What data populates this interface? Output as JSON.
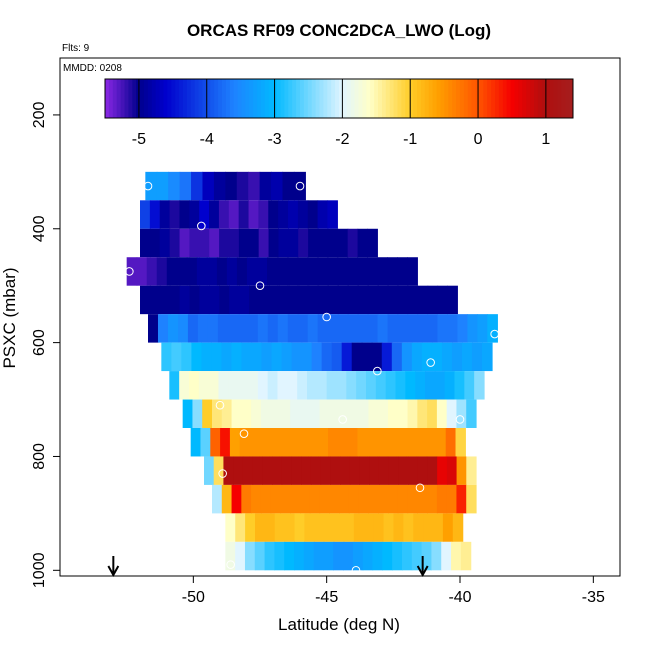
{
  "chart_data": {
    "type": "heatmap",
    "title": "ORCAS RF09 CONC2DCA_LWO (Log)",
    "note_flights": "Flts: 9",
    "note_date": "MMDD: 0208",
    "xlabel": "Latitude (deg N)",
    "ylabel": "PSXC (mbar)",
    "xlim": [
      -55,
      -34
    ],
    "ylim": [
      1010,
      100
    ],
    "y_axis": "inverted",
    "xticks": [
      -50,
      -45,
      -40,
      -35
    ],
    "yticks": [
      200,
      400,
      600,
      800,
      1000
    ],
    "colorbar": {
      "range": [
        -5.5,
        1.4
      ],
      "ticks": [
        -5,
        -4,
        -3,
        -2,
        -1,
        0,
        1
      ],
      "placement": "top-inside"
    },
    "grid": false,
    "cell_height_mbar": 50,
    "rows": [
      {
        "p": 325,
        "x0": -51.8,
        "x1": -45.8,
        "values": [
          -3.3,
          -3.3,
          -3.5,
          -3.7,
          -4.2,
          -4.7,
          -4.9,
          -5.0,
          -5.1,
          -5.2,
          -4.9,
          -4.8,
          -5.0,
          -5.0
        ]
      },
      {
        "p": 375,
        "x0": -52.0,
        "x1": -44.6,
        "values": [
          -4.1,
          -4.5,
          -4.9,
          -5.1,
          -5.0,
          -4.9,
          -4.6,
          -4.9,
          -5.2,
          -5.3,
          -5.1,
          -5.3,
          -5.2,
          -5.0,
          -4.9,
          -4.8,
          -4.9,
          -5.0,
          -4.8,
          -4.7
        ]
      },
      {
        "p": 425,
        "x0": -52.0,
        "x1": -43.1,
        "values": [
          -5.0,
          -5.0,
          -4.9,
          -5.1,
          -5.3,
          -5.2,
          -5.2,
          -5.3,
          -5.1,
          -5.1,
          -5.0,
          -5.0,
          -5.2,
          -5.0,
          -4.9,
          -4.9,
          -5.1,
          -5.0,
          -5.0,
          -5.0,
          -5.0,
          -5.1,
          -5.0,
          -5.0
        ]
      },
      {
        "p": 475,
        "x0": -52.5,
        "x1": -41.6,
        "values": [
          -5.3,
          -5.3,
          -5.2,
          -5.1,
          -5.0,
          -5.0,
          -5.0,
          -4.9,
          -4.9,
          -5.0,
          -4.9,
          -5.0,
          -4.9,
          -4.9,
          -5.0,
          -5.0,
          -5.0,
          -5.0,
          -5.0,
          -5.0,
          -5.0,
          -5.0,
          -5.0,
          -5.0,
          -5.0,
          -5.0,
          -5.0,
          -5.0,
          -5.0
        ]
      },
      {
        "p": 525,
        "x0": -52.0,
        "x1": -40.1,
        "values": [
          -5.0,
          -5.0,
          -5.0,
          -5.0,
          -4.9,
          -5.0,
          -4.9,
          -4.9,
          -5.0,
          -4.9,
          -4.9,
          -5.0,
          -5.0,
          -5.0,
          -5.0,
          -5.0,
          -5.0,
          -5.0,
          -5.0,
          -5.0,
          -5.0,
          -5.0,
          -5.0,
          -5.0,
          -5.0,
          -5.0,
          -5.0,
          -5.0,
          -5.0,
          -5.0,
          -5.0,
          -5.0
        ]
      },
      {
        "p": 575,
        "x0": -51.7,
        "x1": -38.6,
        "values": [
          -5.0,
          -3.6,
          -3.4,
          -3.5,
          -3.8,
          -3.7,
          -3.7,
          -3.8,
          -3.8,
          -3.8,
          -3.8,
          -3.7,
          -3.8,
          -3.7,
          -3.8,
          -3.8,
          -3.7,
          -3.8,
          -3.8,
          -3.8,
          -3.8,
          -3.8,
          -3.8,
          -3.7,
          -3.8,
          -3.8,
          -3.8,
          -3.8,
          -3.8,
          -3.7,
          -3.7,
          -3.6,
          -3.4,
          -3.3,
          -3.1
        ]
      },
      {
        "p": 625,
        "x0": -51.2,
        "x1": -38.8,
        "values": [
          -2.8,
          -2.7,
          -2.8,
          -3.0,
          -3.1,
          -3.1,
          -3.2,
          -3.1,
          -3.2,
          -3.2,
          -3.3,
          -3.2,
          -3.3,
          -3.4,
          -3.4,
          -3.6,
          -3.8,
          -3.9,
          -4.4,
          -5.0,
          -5.0,
          -5.0,
          -4.4,
          -3.8,
          -3.4,
          -3.2,
          -3.1,
          -3.1,
          -3.2,
          -3.3,
          -3.2,
          -3.3,
          -3.2
        ]
      },
      {
        "p": 675,
        "x0": -50.9,
        "x1": -39.1,
        "values": [
          -2.9,
          -1.7,
          -1.6,
          -1.7,
          -1.7,
          -1.9,
          -1.9,
          -1.9,
          -1.9,
          -2.0,
          -2.1,
          -2.0,
          -2.0,
          -2.1,
          -2.2,
          -2.2,
          -2.3,
          -2.3,
          -2.4,
          -2.5,
          -2.6,
          -2.7,
          -2.8,
          -2.9,
          -3.0,
          -3.1,
          -3.2,
          -3.2,
          -3.1,
          -2.9,
          -2.7,
          -2.4
        ]
      },
      {
        "p": 725,
        "x0": -50.4,
        "x1": -39.4,
        "values": [
          -3.0,
          -2.4,
          -1.0,
          -1.3,
          -1.4,
          -1.6,
          -1.6,
          -1.7,
          -1.8,
          -1.8,
          -1.8,
          -1.9,
          -1.9,
          -1.9,
          -1.8,
          -1.8,
          -1.8,
          -1.8,
          -1.8,
          -1.7,
          -1.7,
          -1.6,
          -1.6,
          -1.5,
          -1.3,
          -1.2,
          -1.6,
          -2.0,
          -2.3,
          -2.7
        ]
      },
      {
        "p": 775,
        "x0": -50.1,
        "x1": -39.8,
        "values": [
          -3.0,
          -2.6,
          -0.1,
          0.4,
          -0.6,
          -0.5,
          -0.5,
          -0.5,
          -0.5,
          -0.5,
          -0.5,
          -0.5,
          -0.5,
          -0.5,
          -0.4,
          -0.4,
          -0.4,
          -0.5,
          -0.5,
          -0.5,
          -0.5,
          -0.5,
          -0.5,
          -0.5,
          -0.5,
          -0.5,
          -0.2,
          -1.1
        ]
      },
      {
        "p": 825,
        "x0": -49.6,
        "x1": -39.4,
        "values": [
          -2.5,
          -1.2,
          1.0,
          1.0,
          1.0,
          1.0,
          1.0,
          1.0,
          1.0,
          1.0,
          1.0,
          1.0,
          1.0,
          1.0,
          1.0,
          1.0,
          1.0,
          1.0,
          1.0,
          1.0,
          1.0,
          1.0,
          1.0,
          1.0,
          0.6,
          0.7,
          -0.5,
          -1.4
        ]
      },
      {
        "p": 875,
        "x0": -49.3,
        "x1": -39.4,
        "values": [
          -2.2,
          -0.8,
          0.5,
          -0.3,
          -0.4,
          -0.4,
          -0.4,
          -0.4,
          -0.4,
          -0.4,
          -0.4,
          -0.4,
          -0.4,
          -0.4,
          -0.4,
          -0.4,
          -0.4,
          -0.4,
          -0.4,
          -0.4,
          -0.4,
          -0.4,
          -0.4,
          -0.3,
          -0.3,
          0.3,
          -1.2
        ]
      },
      {
        "p": 925,
        "x0": -48.8,
        "x1": -39.9,
        "values": [
          -1.6,
          -1.3,
          -1.0,
          -0.8,
          -0.8,
          -0.9,
          -0.9,
          -1.0,
          -0.9,
          -0.9,
          -0.9,
          -0.9,
          -0.9,
          -0.8,
          -0.8,
          -0.8,
          -0.9,
          -0.8,
          -0.9,
          -0.8,
          -0.8,
          -0.8,
          -0.6,
          -0.8
        ]
      },
      {
        "p": 975,
        "x0": -48.8,
        "x1": -39.6,
        "values": [
          -1.8,
          -2.0,
          -2.4,
          -2.6,
          -2.8,
          -2.9,
          -3.0,
          -3.1,
          -3.2,
          -3.3,
          -3.3,
          -3.4,
          -3.4,
          -3.3,
          -3.2,
          -3.1,
          -3.0,
          -2.9,
          -2.8,
          -2.7,
          -2.6,
          -2.4,
          -2.0,
          -1.5,
          -1.4
        ]
      }
    ],
    "points": [
      {
        "x": -51.7,
        "y": 325
      },
      {
        "x": -46.0,
        "y": 325
      },
      {
        "x": -49.7,
        "y": 395
      },
      {
        "x": -52.4,
        "y": 475
      },
      {
        "x": -47.5,
        "y": 500
      },
      {
        "x": -45.0,
        "y": 555
      },
      {
        "x": -43.1,
        "y": 650
      },
      {
        "x": -41.1,
        "y": 635
      },
      {
        "x": -38.7,
        "y": 585
      },
      {
        "x": -49.0,
        "y": 710
      },
      {
        "x": -44.4,
        "y": 735
      },
      {
        "x": -40.0,
        "y": 735
      },
      {
        "x": -48.1,
        "y": 760
      },
      {
        "x": -48.9,
        "y": 830
      },
      {
        "x": -41.5,
        "y": 855
      },
      {
        "x": -48.6,
        "y": 990
      },
      {
        "x": -43.9,
        "y": 1000
      }
    ],
    "arrows": [
      {
        "x": -53.0
      },
      {
        "x": -41.4
      }
    ]
  }
}
